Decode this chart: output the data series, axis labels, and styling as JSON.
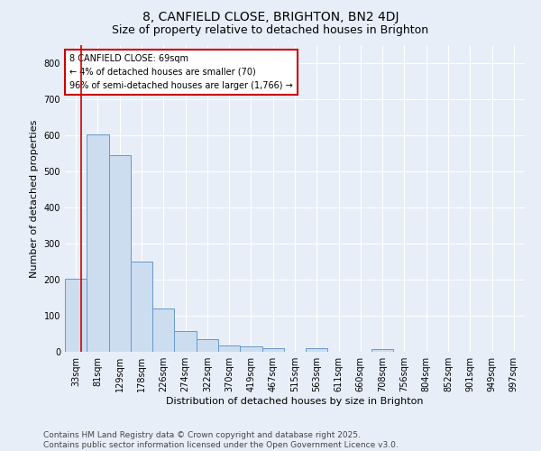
{
  "title1": "8, CANFIELD CLOSE, BRIGHTON, BN2 4DJ",
  "title2": "Size of property relative to detached houses in Brighton",
  "xlabel": "Distribution of detached houses by size in Brighton",
  "ylabel": "Number of detached properties",
  "bin_labels": [
    "33sqm",
    "81sqm",
    "129sqm",
    "178sqm",
    "226sqm",
    "274sqm",
    "322sqm",
    "370sqm",
    "419sqm",
    "467sqm",
    "515sqm",
    "563sqm",
    "611sqm",
    "660sqm",
    "708sqm",
    "756sqm",
    "804sqm",
    "852sqm",
    "901sqm",
    "949sqm",
    "997sqm"
  ],
  "bar_heights": [
    203,
    603,
    544,
    251,
    120,
    58,
    34,
    18,
    14,
    10,
    0,
    10,
    0,
    0,
    8,
    0,
    0,
    0,
    0,
    0,
    0
  ],
  "bar_color": "#ccddf0",
  "bar_edge_color": "#6699cc",
  "vline_color": "#cc0000",
  "vline_pos": 0.75,
  "annotation_text": "8 CANFIELD CLOSE: 69sqm\n← 4% of detached houses are smaller (70)\n96% of semi-detached houses are larger (1,766) →",
  "annotation_box_color": "#ffffff",
  "annotation_box_edge": "#cc0000",
  "ylim": [
    0,
    850
  ],
  "yticks": [
    0,
    100,
    200,
    300,
    400,
    500,
    600,
    700,
    800
  ],
  "footer_text": "Contains HM Land Registry data © Crown copyright and database right 2025.\nContains public sector information licensed under the Open Government Licence v3.0.",
  "background_color": "#e8eef8",
  "plot_background": "#e8eef8",
  "grid_color": "#ffffff",
  "title_fontsize": 10,
  "subtitle_fontsize": 9,
  "axis_label_fontsize": 8,
  "tick_fontsize": 7,
  "footer_fontsize": 6.5
}
